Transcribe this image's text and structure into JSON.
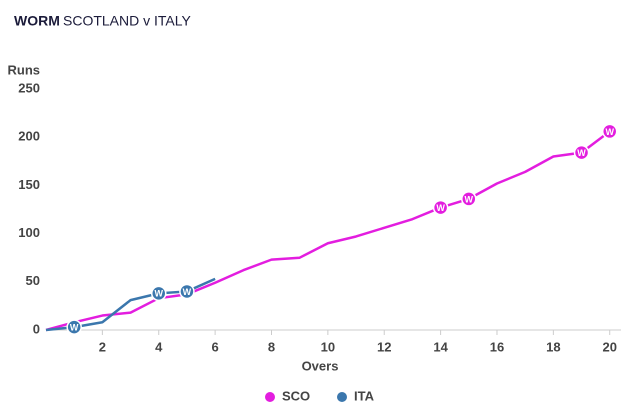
{
  "chart_data": {
    "type": "line",
    "title": "WORM",
    "subtitle": "SCOTLAND v ITALY",
    "y_label": "Runs",
    "x_label": "Overs",
    "x": [
      0,
      1,
      2,
      3,
      4,
      5,
      6,
      7,
      8,
      9,
      10,
      11,
      12,
      13,
      14,
      15,
      16,
      17,
      18,
      19,
      20
    ],
    "series": [
      {
        "name": "SCO",
        "color": "#e31ddf",
        "values": [
          0,
          8,
          15,
          18,
          33,
          37,
          49,
          62,
          73,
          75,
          90,
          97,
          106,
          115,
          127,
          136,
          152,
          164,
          180,
          184,
          206
        ],
        "wickets": [
          14,
          15,
          19,
          20
        ]
      },
      {
        "name": "ITA",
        "color": "#3b77ad",
        "values": [
          0,
          3,
          8,
          31,
          38,
          40,
          53,
          null,
          null,
          null,
          null,
          null,
          null,
          null,
          null,
          null,
          null,
          null,
          null,
          null,
          null
        ],
        "wickets": [
          1,
          4,
          5
        ]
      }
    ],
    "wicket_marker": "W",
    "xlim": [
      0,
      20.4
    ],
    "xticks": [
      2,
      4,
      6,
      8,
      10,
      12,
      14,
      16,
      18,
      20
    ],
    "ylim": [
      0,
      250
    ],
    "yticks": [
      0,
      50,
      100,
      150,
      200,
      250
    ],
    "grid": false,
    "legend": "bottom"
  }
}
